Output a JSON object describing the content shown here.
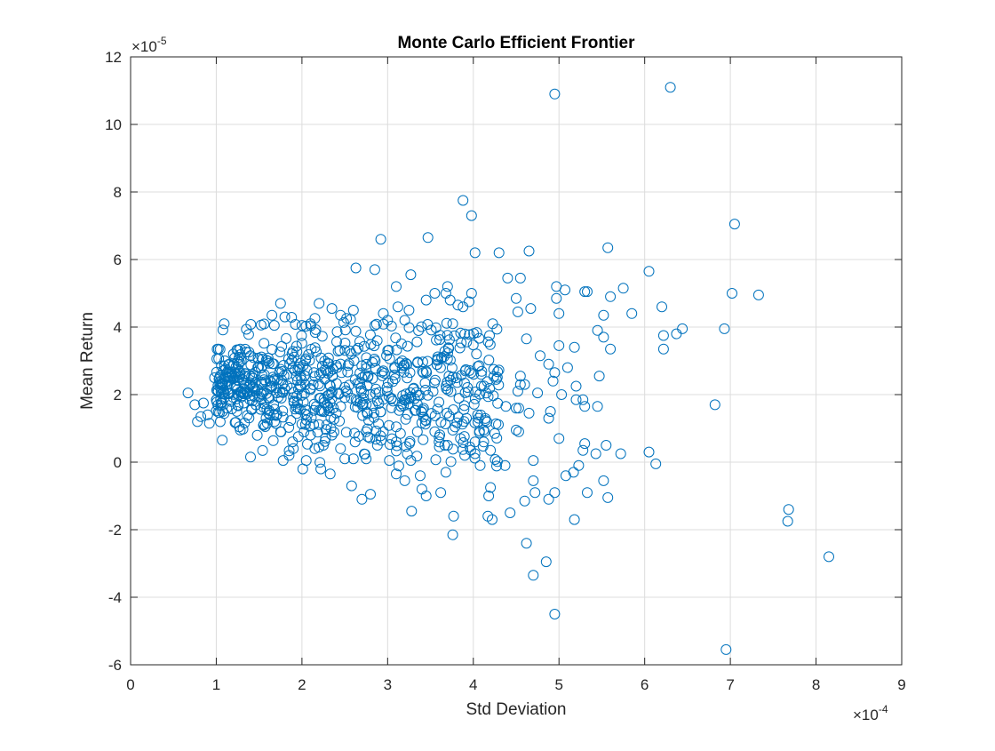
{
  "chart_data": {
    "type": "scatter",
    "title": "Monte Carlo Efficient Frontier",
    "xlabel": "Std Deviation",
    "ylabel": "Mean Return",
    "x_multiplier_base": "×10",
    "x_multiplier_exp": "-4",
    "y_multiplier_base": "×10",
    "y_multiplier_exp": "-5",
    "xlim": [
      0,
      9
    ],
    "ylim": [
      -6,
      12
    ],
    "xticks": [
      "0",
      "1",
      "2",
      "3",
      "4",
      "5",
      "6",
      "7",
      "8",
      "9"
    ],
    "yticks": [
      "-6",
      "-4",
      "-2",
      "0",
      "2",
      "4",
      "6",
      "8",
      "10",
      "12"
    ],
    "grid": true,
    "marker": "open-circle",
    "color": "#0072bd",
    "points": [
      [
        4.95,
        10.9
      ],
      [
        6.3,
        11.1
      ],
      [
        3.88,
        7.75
      ],
      [
        3.98,
        7.3
      ],
      [
        2.92,
        6.6
      ],
      [
        3.47,
        6.65
      ],
      [
        7.05,
        7.05
      ],
      [
        5.57,
        6.35
      ],
      [
        4.65,
        6.25
      ],
      [
        4.02,
        6.2
      ],
      [
        4.3,
        6.2
      ],
      [
        2.63,
        5.75
      ],
      [
        2.85,
        5.7
      ],
      [
        6.05,
        5.65
      ],
      [
        3.27,
        5.55
      ],
      [
        4.4,
        5.45
      ],
      [
        4.55,
        5.45
      ],
      [
        3.1,
        5.2
      ],
      [
        3.7,
        5.2
      ],
      [
        4.97,
        5.2
      ],
      [
        5.07,
        5.1
      ],
      [
        5.3,
        5.05
      ],
      [
        5.33,
        5.05
      ],
      [
        5.75,
        5.15
      ],
      [
        7.02,
        5.0
      ],
      [
        7.33,
        4.95
      ],
      [
        3.98,
        5.0
      ],
      [
        3.95,
        4.75
      ],
      [
        4.5,
        4.85
      ],
      [
        5.6,
        4.9
      ],
      [
        4.97,
        4.85
      ],
      [
        4.67,
        4.55
      ],
      [
        6.2,
        4.6
      ],
      [
        5.0,
        4.4
      ],
      [
        5.85,
        4.4
      ],
      [
        5.52,
        4.35
      ],
      [
        4.52,
        4.45
      ],
      [
        6.44,
        3.95
      ],
      [
        6.93,
        3.95
      ],
      [
        6.37,
        3.8
      ],
      [
        6.22,
        3.75
      ],
      [
        5.45,
        3.9
      ],
      [
        5.52,
        3.7
      ],
      [
        5.0,
        3.45
      ],
      [
        5.18,
        3.4
      ],
      [
        5.6,
        3.35
      ],
      [
        6.22,
        3.35
      ],
      [
        4.62,
        3.65
      ],
      [
        4.78,
        3.15
      ],
      [
        4.88,
        2.9
      ],
      [
        4.95,
        2.65
      ],
      [
        4.93,
        2.4
      ],
      [
        5.2,
        2.25
      ],
      [
        4.55,
        2.55
      ],
      [
        4.55,
        2.3
      ],
      [
        4.52,
        2.1
      ],
      [
        4.6,
        2.3
      ],
      [
        4.75,
        2.05
      ],
      [
        5.03,
        2.0
      ],
      [
        5.1,
        2.8
      ],
      [
        5.47,
        2.55
      ],
      [
        5.2,
        1.85
      ],
      [
        5.28,
        1.85
      ],
      [
        5.3,
        1.65
      ],
      [
        5.45,
        1.65
      ],
      [
        4.5,
        1.6
      ],
      [
        4.53,
        1.6
      ],
      [
        4.38,
        1.65
      ],
      [
        4.9,
        1.5
      ],
      [
        4.65,
        1.45
      ],
      [
        4.88,
        1.3
      ],
      [
        4.5,
        0.95
      ],
      [
        4.53,
        0.9
      ],
      [
        6.82,
        1.7
      ],
      [
        4.25,
        0.85
      ],
      [
        4.13,
        0.9
      ],
      [
        4.2,
        0.35
      ],
      [
        4.02,
        0.25
      ],
      [
        4.02,
        0.6
      ],
      [
        4.37,
        -0.1
      ],
      [
        4.7,
        0.05
      ],
      [
        5.0,
        0.7
      ],
      [
        5.3,
        0.55
      ],
      [
        5.28,
        0.35
      ],
      [
        5.43,
        0.25
      ],
      [
        5.55,
        0.5
      ],
      [
        5.72,
        0.25
      ],
      [
        6.05,
        0.3
      ],
      [
        6.13,
        -0.05
      ],
      [
        5.23,
        -0.1
      ],
      [
        5.17,
        -0.3
      ],
      [
        5.08,
        -0.4
      ],
      [
        5.33,
        -0.9
      ],
      [
        5.52,
        -0.55
      ],
      [
        5.57,
        -1.05
      ],
      [
        4.95,
        -0.9
      ],
      [
        4.88,
        -1.1
      ],
      [
        4.72,
        -0.9
      ],
      [
        4.7,
        -0.55
      ],
      [
        4.6,
        -1.15
      ],
      [
        4.2,
        -0.75
      ],
      [
        4.18,
        -1.0
      ],
      [
        4.43,
        -1.5
      ],
      [
        4.17,
        -1.6
      ],
      [
        4.22,
        -1.7
      ],
      [
        3.77,
        -1.6
      ],
      [
        3.76,
        -2.15
      ],
      [
        3.62,
        -0.9
      ],
      [
        3.68,
        -0.3
      ],
      [
        3.4,
        -0.8
      ],
      [
        3.45,
        -1.0
      ],
      [
        3.28,
        -1.45
      ],
      [
        3.38,
        -0.4
      ],
      [
        3.27,
        0.05
      ],
      [
        3.02,
        0.05
      ],
      [
        3.1,
        -0.35
      ],
      [
        3.2,
        -0.55
      ],
      [
        5.18,
        -1.7
      ],
      [
        4.62,
        -2.4
      ],
      [
        4.85,
        -2.95
      ],
      [
        4.7,
        -3.35
      ],
      [
        4.95,
        -4.5
      ],
      [
        6.95,
        -5.55
      ],
      [
        7.68,
        -1.4
      ],
      [
        7.67,
        -1.75
      ],
      [
        8.15,
        -2.8
      ],
      [
        2.8,
        -0.95
      ],
      [
        2.7,
        -1.1
      ],
      [
        2.58,
        -0.7
      ],
      [
        2.33,
        -0.35
      ],
      [
        2.22,
        -0.2
      ],
      [
        2.05,
        0.05
      ],
      [
        1.78,
        0.05
      ],
      [
        1.4,
        0.15
      ],
      [
        1.07,
        0.65
      ],
      [
        0.78,
        1.2
      ],
      [
        0.67,
        2.05
      ],
      [
        0.75,
        1.7
      ],
      [
        0.82,
        1.35
      ],
      [
        0.85,
        1.75
      ],
      [
        0.92,
        1.15
      ],
      [
        0.9,
        1.4
      ],
      [
        0.98,
        2.5
      ],
      [
        1.05,
        2.2
      ],
      [
        1.1,
        3.0
      ],
      [
        1.2,
        3.2
      ],
      [
        1.28,
        3.35
      ],
      [
        1.4,
        3.15
      ],
      [
        1.65,
        4.35
      ],
      [
        1.75,
        4.7
      ],
      [
        1.8,
        4.3
      ],
      [
        2.2,
        4.7
      ],
      [
        2.0,
        4.05
      ],
      [
        2.1,
        4.1
      ],
      [
        2.35,
        4.55
      ],
      [
        2.45,
        4.35
      ],
      [
        2.6,
        4.5
      ],
      [
        2.95,
        4.4
      ],
      [
        3.12,
        4.6
      ],
      [
        3.25,
        4.5
      ],
      [
        3.45,
        4.8
      ],
      [
        3.55,
        5.0
      ],
      [
        3.68,
        5.0
      ],
      [
        3.73,
        4.8
      ],
      [
        3.82,
        4.65
      ],
      [
        3.88,
        4.6
      ],
      [
        3.2,
        4.2
      ],
      [
        3.0,
        4.2
      ],
      [
        2.85,
        4.05
      ],
      [
        3.85,
        0.7
      ],
      [
        3.6,
        0.6
      ],
      [
        3.55,
        0.9
      ],
      [
        3.7,
        0.5
      ],
      [
        3.9,
        0.2
      ],
      [
        3.96,
        0.45
      ],
      [
        4.08,
        -0.1
      ],
      [
        3.15,
        0.85
      ],
      [
        3.1,
        0.6
      ],
      [
        2.95,
        0.9
      ],
      [
        2.75,
        0.9
      ],
      [
        2.62,
        0.6
      ],
      [
        2.45,
        0.4
      ],
      [
        2.5,
        0.1
      ],
      [
        2.6,
        0.1
      ],
      [
        2.75,
        0.1
      ],
      [
        2.88,
        0.5
      ],
      [
        2.35,
        0.8
      ],
      [
        2.25,
        0.5
      ],
      [
        2.15,
        0.4
      ],
      [
        2.1,
        0.8
      ],
      [
        1.9,
        0.4
      ],
      [
        1.85,
        0.2
      ],
      [
        1.75,
        0.9
      ],
      [
        1.68,
        1.2
      ]
    ],
    "cluster_seed": 7,
    "cluster_count": 720
  }
}
